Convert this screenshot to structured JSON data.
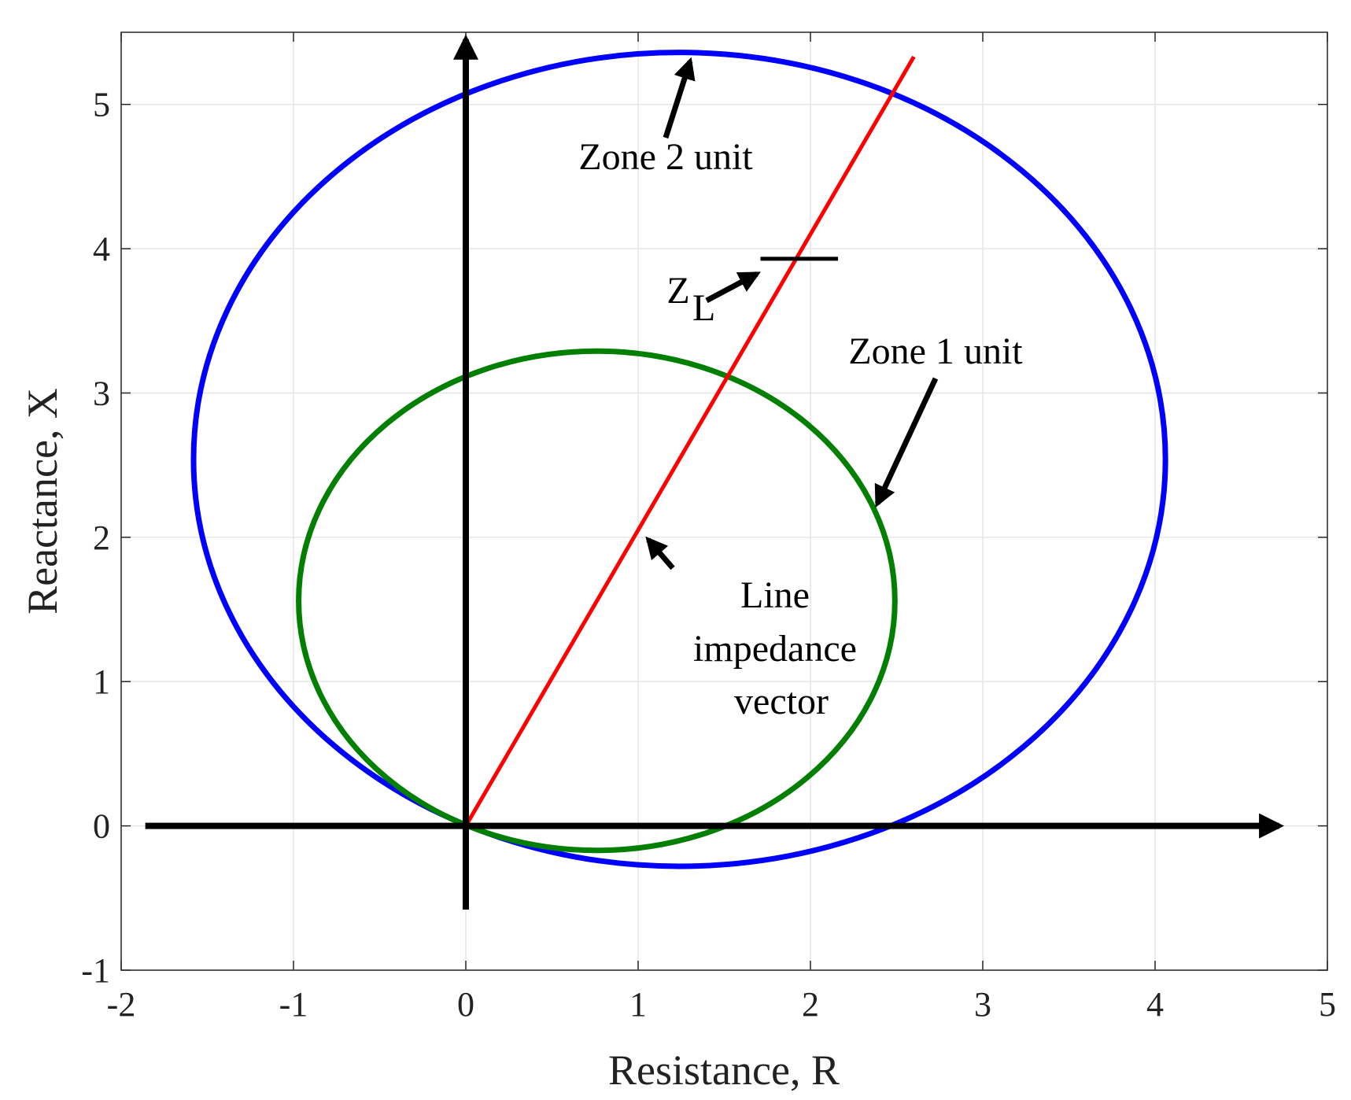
{
  "chart_data": {
    "type": "impedance-diagram",
    "xlabel": "Resistance, R",
    "ylabel": "Reactance, X",
    "xlim": [
      -2,
      5
    ],
    "ylim": [
      -1,
      5.5
    ],
    "xticks": [
      -2,
      -1,
      0,
      1,
      2,
      3,
      4,
      5
    ],
    "yticks": [
      -1,
      0,
      1,
      2,
      3,
      4,
      5
    ],
    "grid": true,
    "series": [
      {
        "kind": "circle",
        "color": "#0000ff",
        "center": [
          1.24,
          2.54
        ],
        "radius": 2.82
      },
      {
        "kind": "circle",
        "color": "#007f00",
        "center": [
          0.76,
          1.56
        ],
        "radius": 1.73
      },
      {
        "kind": "line",
        "color": "#ff0000",
        "x": [
          0,
          2.6
        ],
        "y": [
          0,
          5.33
        ]
      },
      {
        "kind": "arrow",
        "color": "#000000",
        "x": [
          -1.86,
          4.72
        ],
        "y": [
          0,
          0
        ]
      },
      {
        "kind": "arrow",
        "color": "#000000",
        "x": [
          0,
          0
        ],
        "y": [
          -0.58,
          5.45
        ]
      },
      {
        "kind": "line",
        "color": "#000000",
        "x": [
          1.71,
          2.16
        ],
        "y": [
          3.93,
          3.93
        ]
      }
    ],
    "annotations": [
      {
        "text": [
          "Zone 2 unit"
        ]
      },
      {
        "text": [
          "Zone 1 unit"
        ]
      },
      {
        "text": [
          "Z"
        ],
        "subscript": "L"
      },
      {
        "text": [
          "Line",
          "impedance",
          "vector"
        ]
      }
    ]
  }
}
